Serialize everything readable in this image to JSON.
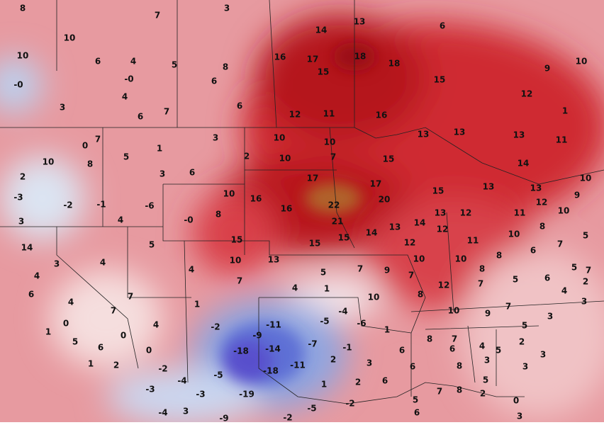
{
  "labels": [
    "8",
    "7",
    "3",
    "10",
    "10",
    "6",
    "4",
    "5",
    "8",
    "-0",
    "6",
    "-0",
    "4",
    "3",
    "6",
    "7",
    "6",
    "14",
    "13",
    "6",
    "16",
    "17",
    "18",
    "18",
    "15",
    "15",
    "10",
    "9",
    "12",
    "12",
    "11",
    "16",
    "1",
    "13",
    "13",
    "13",
    "11",
    "0",
    "7",
    "1",
    "3",
    "5",
    "10",
    "10",
    "10",
    "8",
    "2",
    "10",
    "7",
    "15",
    "14",
    "2",
    "3",
    "6",
    "17",
    "17",
    "10",
    "-3",
    "-2",
    "-1",
    "-6",
    "10",
    "16",
    "15",
    "13",
    "13",
    "9",
    "20",
    "22",
    "16",
    "8",
    "-0",
    "4",
    "3",
    "13",
    "12",
    "11",
    "12",
    "10",
    "21",
    "14",
    "13",
    "14",
    "12",
    "10",
    "8",
    "5",
    "15",
    "15",
    "15",
    "12",
    "11",
    "7",
    "6",
    "14",
    "5",
    "3",
    "4",
    "10",
    "13",
    "5",
    "7",
    "9",
    "10",
    "10",
    "8",
    "8",
    "5",
    "7",
    "4",
    "4",
    "7",
    "4",
    "1",
    "7",
    "5",
    "6",
    "6",
    "7",
    "4",
    "7",
    "12",
    "4",
    "2",
    "10",
    "8",
    "1",
    "3",
    "7",
    "10",
    "9",
    "7",
    "3",
    "-4",
    "0",
    "-2",
    "4",
    "-11",
    "-5",
    "-6",
    "1",
    "5",
    "1",
    "0",
    "-9",
    "-7",
    "-1",
    "5",
    "8",
    "7",
    "4",
    "2",
    "6",
    "0",
    "-14",
    "-18",
    "6",
    "6",
    "5",
    "3",
    "2",
    "3",
    "1",
    "2",
    "-2",
    "-11",
    "-18",
    "6",
    "8",
    "3",
    "3",
    "-5",
    "-4",
    "-3",
    "-3",
    "1",
    "2",
    "6",
    "7",
    "5",
    "-19",
    "-2",
    "5",
    "8",
    "2",
    "0",
    "-4",
    "3",
    "-9",
    "-2",
    "-5",
    "6",
    "3"
  ]
}
